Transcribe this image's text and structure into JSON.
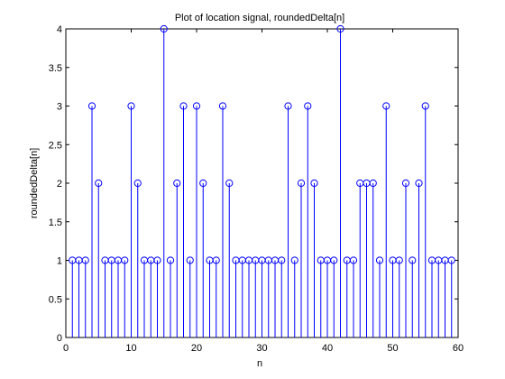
{
  "chart_data": {
    "type": "stem",
    "title": "Plot of location signal, roundedDelta[n]",
    "xlabel": "n",
    "ylabel": "roundedDelta[n]",
    "xlim": [
      0,
      60
    ],
    "ylim": [
      0,
      4
    ],
    "xticks": [
      0,
      10,
      20,
      30,
      40,
      50,
      60
    ],
    "yticks": [
      0,
      0.5,
      1,
      1.5,
      2,
      2.5,
      3,
      3.5,
      4
    ],
    "xtick_labels": [
      "0",
      "10",
      "20",
      "30",
      "40",
      "50",
      "60"
    ],
    "ytick_labels": [
      "0",
      "0.5",
      "1",
      "1.5",
      "2",
      "2.5",
      "3",
      "3.5",
      "4"
    ],
    "grid": false,
    "color": "#0000ff",
    "x": [
      1,
      2,
      3,
      4,
      5,
      6,
      7,
      8,
      9,
      10,
      11,
      12,
      13,
      14,
      15,
      16,
      17,
      18,
      19,
      20,
      21,
      22,
      23,
      24,
      25,
      26,
      27,
      28,
      29,
      30,
      31,
      32,
      33,
      34,
      35,
      36,
      37,
      38,
      39,
      40,
      41,
      42,
      43,
      44,
      45,
      46,
      47,
      48,
      49,
      50,
      51,
      52,
      53,
      54,
      55,
      56,
      57,
      58,
      59
    ],
    "y": [
      1,
      1,
      1,
      3,
      2,
      1,
      1,
      1,
      1,
      3,
      2,
      1,
      1,
      1,
      4,
      1,
      2,
      3,
      1,
      3,
      2,
      1,
      1,
      3,
      2,
      1,
      1,
      1,
      1,
      1,
      1,
      1,
      1,
      3,
      1,
      2,
      3,
      2,
      1,
      1,
      1,
      4,
      1,
      1,
      2,
      2,
      2,
      1,
      3,
      1,
      1,
      2,
      1,
      2,
      3,
      1,
      1,
      1,
      1
    ]
  }
}
